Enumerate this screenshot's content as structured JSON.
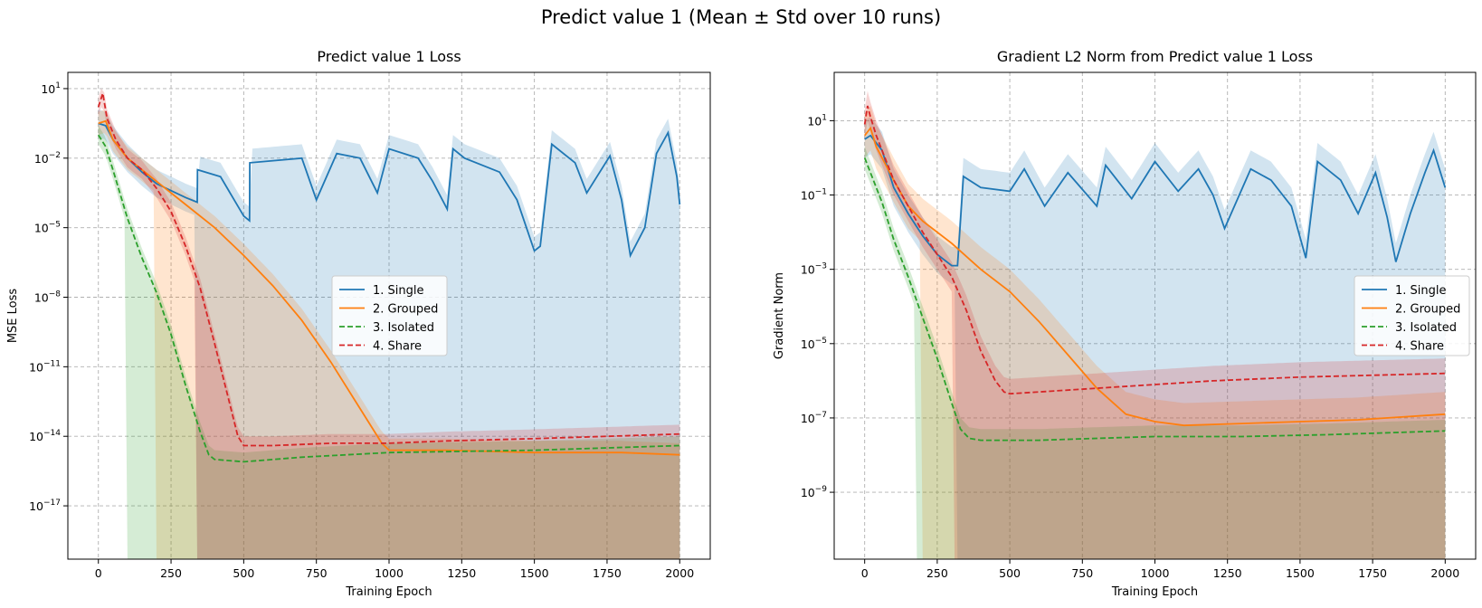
{
  "figure": {
    "suptitle": "Predict value 1 (Mean ± Std over 10 runs)"
  },
  "chart_data": [
    {
      "type": "line",
      "title": "Predict value 1 Loss",
      "xlabel": "Training Epoch",
      "ylabel": "MSE Loss",
      "yscale": "log",
      "xlim": [
        -105,
        2105
      ],
      "ylim_exp": [
        -19.3,
        1.7
      ],
      "x_ticks": [
        0,
        250,
        500,
        750,
        1000,
        1250,
        1500,
        1750,
        2000
      ],
      "x_tick_labels": [
        "0",
        "250",
        "500",
        "750",
        "1000",
        "1250",
        "1500",
        "1750",
        "2000"
      ],
      "y_ticks_exp": [
        -17,
        -14,
        -11,
        -8,
        -5,
        -2,
        1
      ],
      "y_tick_labels": [
        "10",
        "10",
        "10",
        "10",
        "10",
        "10",
        "10"
      ],
      "y_tick_exponents": [
        "−17",
        "−14",
        "−11",
        "−8",
        "−5",
        "−2",
        "1"
      ],
      "grid": true,
      "legend_position": "center",
      "series": [
        {
          "name": "1. Single",
          "color": "#1f77b4",
          "style": "solid",
          "x": [
            0,
            25,
            50,
            100,
            150,
            200,
            250,
            300,
            340,
            341,
            420,
            500,
            520,
            521,
            700,
            750,
            820,
            900,
            960,
            1000,
            1100,
            1150,
            1200,
            1220,
            1260,
            1380,
            1440,
            1500,
            1520,
            1560,
            1640,
            1680,
            1760,
            1800,
            1830,
            1880,
            1920,
            1960,
            1990,
            2000
          ],
          "y_log10": [
            -0.5,
            -0.6,
            -1.2,
            -2.0,
            -2.6,
            -3.1,
            -3.4,
            -3.7,
            -3.9,
            -2.5,
            -2.8,
            -4.5,
            -4.7,
            -2.2,
            -2.0,
            -3.8,
            -1.8,
            -2.0,
            -3.5,
            -1.6,
            -2.0,
            -3.0,
            -4.2,
            -1.6,
            -2.0,
            -2.6,
            -3.8,
            -6.0,
            -5.8,
            -1.4,
            -2.2,
            -3.5,
            -1.9,
            -3.8,
            -6.2,
            -5.0,
            -1.8,
            -0.9,
            -2.8,
            -4.0
          ],
          "band_upper_offset": 0.6,
          "band_floor_x": [
            340,
            520
          ],
          "band_floor_log10": -19.3
        },
        {
          "name": "2. Grouped",
          "color": "#ff7f0e",
          "style": "solid",
          "x": [
            0,
            25,
            50,
            100,
            200,
            300,
            400,
            500,
            600,
            700,
            800,
            900,
            975,
            1000,
            1200,
            1500,
            1800,
            2000
          ],
          "y_log10": [
            -0.5,
            -0.4,
            -1.2,
            -2.0,
            -3.0,
            -4.0,
            -5.0,
            -6.2,
            -7.5,
            -9.0,
            -10.8,
            -12.8,
            -14.3,
            -14.6,
            -14.6,
            -14.7,
            -14.7,
            -14.8
          ],
          "band_upper_offset": 0.5,
          "band_floor_from_x": 200,
          "band_floor_log10": -19.3
        },
        {
          "name": "3. Isolated",
          "color": "#2ca02c",
          "style": "dashed",
          "x": [
            0,
            25,
            50,
            100,
            150,
            200,
            250,
            300,
            350,
            380,
            400,
            500,
            700,
            1000,
            1500,
            2000
          ],
          "y_log10": [
            -1.0,
            -1.5,
            -2.5,
            -4.6,
            -6.3,
            -7.8,
            -9.6,
            -11.8,
            -13.8,
            -14.8,
            -15.0,
            -15.1,
            -14.9,
            -14.7,
            -14.6,
            -14.4
          ],
          "band_upper_offset": 0.4,
          "band_floor_from_x": 95,
          "band_floor_log10": -19.3
        },
        {
          "name": "4. Share",
          "color": "#d62728",
          "style": "dashed",
          "x": [
            0,
            15,
            30,
            60,
            100,
            150,
            200,
            250,
            300,
            350,
            400,
            450,
            480,
            500,
            600,
            800,
            1000,
            1200,
            1500,
            2000
          ],
          "y_log10": [
            0.2,
            0.8,
            -0.3,
            -1.2,
            -2.0,
            -2.5,
            -3.3,
            -4.3,
            -5.8,
            -7.6,
            -10.0,
            -12.5,
            -14.0,
            -14.4,
            -14.4,
            -14.3,
            -14.3,
            -14.2,
            -14.1,
            -13.9
          ],
          "band_upper_offset": 0.4,
          "band_floor_from_x": 340,
          "band_floor_log10": -19.3
        }
      ]
    },
    {
      "type": "line",
      "title": "Gradient L2 Norm from Predict value 1 Loss",
      "xlabel": "Training Epoch",
      "ylabel": "Gradient Norm",
      "yscale": "log",
      "xlim": [
        -105,
        2105
      ],
      "ylim_exp": [
        -10.8,
        2.3
      ],
      "x_ticks": [
        0,
        250,
        500,
        750,
        1000,
        1250,
        1500,
        1750,
        2000
      ],
      "x_tick_labels": [
        "0",
        "250",
        "500",
        "750",
        "1000",
        "1250",
        "1500",
        "1750",
        "2000"
      ],
      "y_ticks_exp": [
        -9,
        -7,
        -5,
        -3,
        -1,
        1
      ],
      "y_tick_labels": [
        "10",
        "10",
        "10",
        "10",
        "10",
        "10"
      ],
      "y_tick_exponents": [
        "−9",
        "−7",
        "−5",
        "−3",
        "−1",
        "1"
      ],
      "grid": true,
      "legend_position": "center right",
      "series": [
        {
          "name": "1. Single",
          "color": "#1f77b4",
          "style": "solid",
          "x": [
            0,
            20,
            40,
            60,
            100,
            150,
            200,
            250,
            300,
            320,
            340,
            400,
            500,
            550,
            620,
            700,
            800,
            830,
            920,
            1000,
            1080,
            1150,
            1200,
            1240,
            1330,
            1400,
            1470,
            1520,
            1560,
            1640,
            1700,
            1760,
            1800,
            1830,
            1880,
            1930,
            1960,
            2000
          ],
          "y_log10": [
            0.5,
            0.6,
            0.4,
            0.2,
            -0.8,
            -1.5,
            -2.1,
            -2.6,
            -2.9,
            -2.9,
            -0.5,
            -0.8,
            -0.9,
            -0.3,
            -1.3,
            -0.4,
            -1.3,
            -0.2,
            -1.1,
            -0.1,
            -0.9,
            -0.3,
            -1.0,
            -1.9,
            -0.3,
            -0.6,
            -1.3,
            -2.7,
            -0.1,
            -0.6,
            -1.5,
            -0.4,
            -1.6,
            -2.8,
            -1.5,
            -0.4,
            0.2,
            -0.8
          ],
          "band_upper_offset": 0.5,
          "band_floor_x": [
            320,
            2000
          ],
          "band_floor_log10": -10.8
        },
        {
          "name": "2. Grouped",
          "color": "#ff7f0e",
          "style": "solid",
          "x": [
            0,
            20,
            40,
            60,
            100,
            150,
            200,
            300,
            400,
            500,
            600,
            700,
            800,
            900,
            1000,
            1100,
            1300,
            1500,
            1700,
            2000
          ],
          "y_log10": [
            0.6,
            0.8,
            0.3,
            0.0,
            -0.6,
            -1.3,
            -1.7,
            -2.3,
            -3.0,
            -3.6,
            -4.4,
            -5.3,
            -6.2,
            -6.9,
            -7.1,
            -7.2,
            -7.15,
            -7.1,
            -7.05,
            -6.9
          ],
          "band_upper_offset": 0.6,
          "band_floor_from_x": 200,
          "band_floor_log10": -10.8
        },
        {
          "name": "3. Isolated",
          "color": "#2ca02c",
          "style": "dashed",
          "x": [
            0,
            30,
            60,
            100,
            150,
            200,
            250,
            300,
            330,
            360,
            400,
            600,
            800,
            1000,
            1300,
            1600,
            2000
          ],
          "y_log10": [
            0.0,
            -0.6,
            -1.2,
            -2.2,
            -3.2,
            -4.3,
            -5.4,
            -6.6,
            -7.3,
            -7.55,
            -7.6,
            -7.6,
            -7.55,
            -7.5,
            -7.5,
            -7.45,
            -7.35
          ],
          "band_upper_offset": 0.3,
          "band_floor_from_x": 180,
          "band_floor_log10": -10.8
        },
        {
          "name": "4. Share",
          "color": "#d62728",
          "style": "dashed",
          "x": [
            0,
            10,
            20,
            40,
            60,
            100,
            150,
            200,
            250,
            300,
            350,
            400,
            450,
            480,
            500,
            600,
            800,
            1000,
            1200,
            1500,
            2000
          ],
          "y_log10": [
            0.9,
            1.4,
            1.1,
            0.6,
            0.2,
            -0.6,
            -1.3,
            -2.0,
            -2.6,
            -3.2,
            -4.1,
            -5.2,
            -6.0,
            -6.3,
            -6.35,
            -6.3,
            -6.2,
            -6.1,
            -6.0,
            -5.9,
            -5.8
          ],
          "band_upper_offset": 0.4,
          "band_floor_from_x": 310,
          "band_floor_log10": -10.8
        }
      ]
    }
  ]
}
